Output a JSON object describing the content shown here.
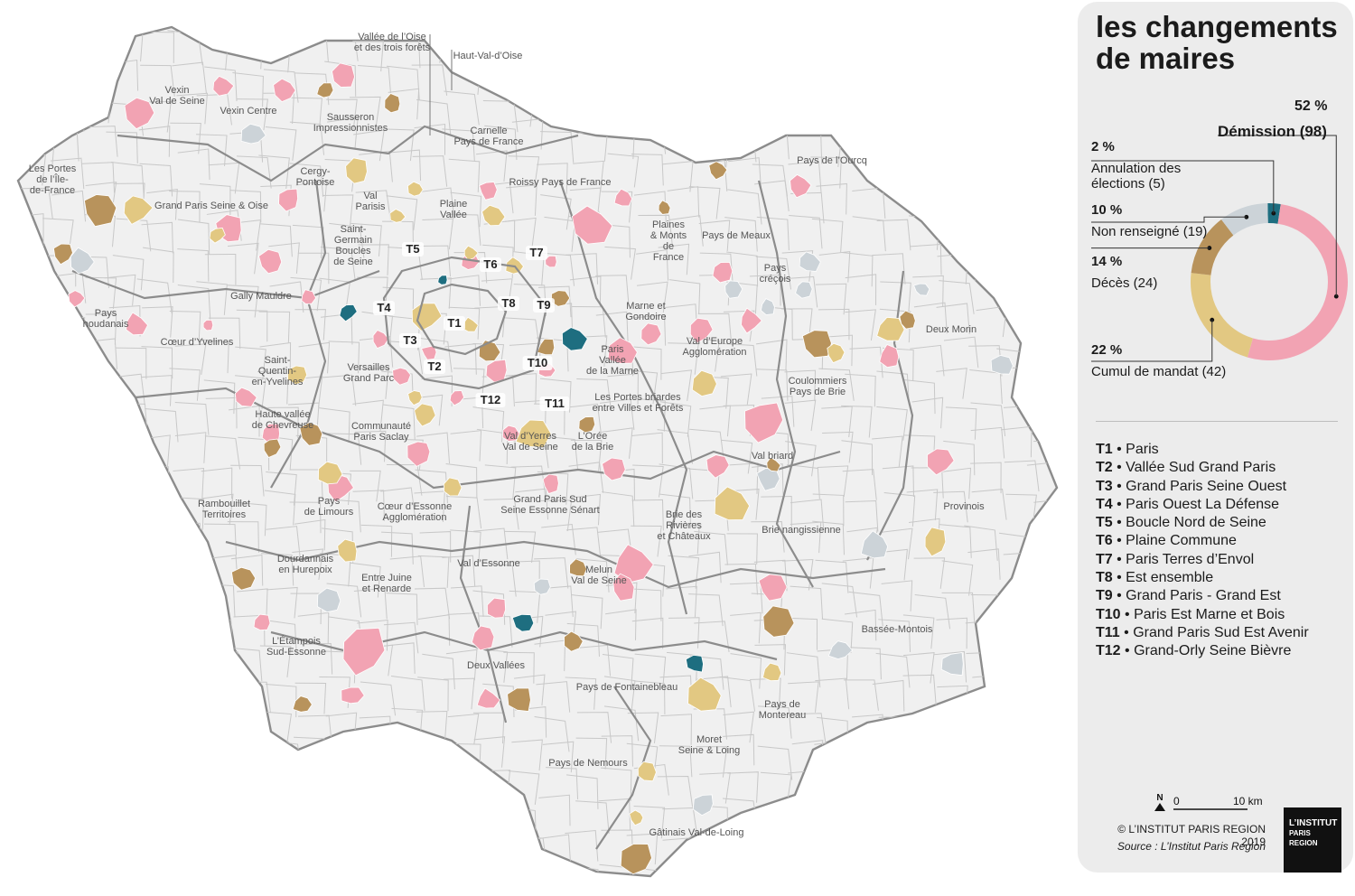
{
  "title": "les changements de maires",
  "legend": {
    "items": [
      {
        "key": "demission",
        "pct": "52 %",
        "label": "Démission (98)",
        "count": 98,
        "color": "#f2a3b3"
      },
      {
        "key": "annulation",
        "pct": "2 %",
        "label": "Annulation des élections (5)",
        "count": 5,
        "color": "#1e6e80"
      },
      {
        "key": "non_renseigne",
        "pct": "10 %",
        "label": "Non renseigné (19)",
        "count": 19,
        "color": "#ccd3d8"
      },
      {
        "key": "deces",
        "pct": "14 %",
        "label": "Décès (24)",
        "count": 24,
        "color": "#b8935c"
      },
      {
        "key": "cumul",
        "pct": "22 %",
        "label": "Cumul de mandat (42)",
        "count": 42,
        "color": "#e2c882"
      }
    ]
  },
  "territories": [
    {
      "code": "T1",
      "name": "Paris"
    },
    {
      "code": "T2",
      "name": "Vallée Sud Grand Paris"
    },
    {
      "code": "T3",
      "name": "Grand Paris Seine Ouest"
    },
    {
      "code": "T4",
      "name": "Paris Ouest La Défense"
    },
    {
      "code": "T5",
      "name": "Boucle Nord de Seine"
    },
    {
      "code": "T6",
      "name": "Plaine Commune"
    },
    {
      "code": "T7",
      "name": "Paris Terres d’Envol"
    },
    {
      "code": "T8",
      "name": "Est ensemble"
    },
    {
      "code": "T9",
      "name": "Grand Paris - Grand Est"
    },
    {
      "code": "T10",
      "name": "Paris Est Marne et Bois"
    },
    {
      "code": "T11",
      "name": "Grand Paris Sud Est Avenir"
    },
    {
      "code": "T12",
      "name": "Grand-Orly Seine Bièvre"
    }
  ],
  "scale": {
    "north": "N",
    "zero": "0",
    "max": "10 km"
  },
  "credit": "© L’INSTITUT PARIS REGION 2019",
  "source": "Source : L’Institut Paris Region",
  "logo": {
    "line1": "L’INSTITUT",
    "line2": "PARIS",
    "line3": "REGION"
  },
  "map": {
    "labels": [
      "Vallée de l’Oise\net des trois forêts",
      "Haut-Val-d’Oise",
      "Vexin\nVal de Seine",
      "Vexin Centre",
      "Sausseron\nImpressionnistes",
      "Carnelle\nPays de France",
      "Les Portes\nde l’Île-\nde-France",
      "Cergy-\nPontoise",
      "Val\nParisis",
      "Plaine\nVallée",
      "Roissy Pays de France",
      "Pays de l’Ourcq",
      "Grand Paris Seine & Oise",
      "Saint-\nGermain\nBoucles\nde Seine",
      "Plaines\n& Monts\nde\nFrance",
      "Pays de Meaux",
      "Pays\ncréçois",
      "Gally Mauldre",
      "Marne et\nGondoire",
      "Pays\nhoudanais",
      "Cœur d’Yvelines",
      "Paris\nVallée\nde la Marne",
      "Val d’Europe\nAgglomération",
      "Deux Morin",
      "Saint-\nQuentin-\nen-Yvelines",
      "Versailles\nGrand Parc",
      "Les Portes briardes\nentre Villes et Forêts",
      "Coulommiers\nPays de Brie",
      "Haute vallée\nde Chevreuse",
      "Communauté\nParis Saclay",
      "Val d’Yerres\nVal de Seine",
      "L’Orée\nde la Brie",
      "Val briard",
      "Rambouillet\nTerritoires",
      "Pays\nde Limours",
      "Cœur d’Essonne\nAgglomération",
      "Grand Paris Sud\nSeine Essonne Sénart",
      "Brie des\nRivières\net Châteaux",
      "Brie nangissienne",
      "Provinois",
      "Dourdannais\nen Hurepoix",
      "Entre Juine\net Renarde",
      "Val d’Essonne",
      "Melun\nVal de Seine",
      "Bassée-Montois",
      "L’Étampois\nSud-Essonne",
      "Deux Vallées",
      "Pays de Fontainebleau",
      "Pays de\nMontereau",
      "Moret\nSeine & Loing",
      "Pays de Nemours",
      "Gâtinais Val-de-Loing"
    ]
  }
}
